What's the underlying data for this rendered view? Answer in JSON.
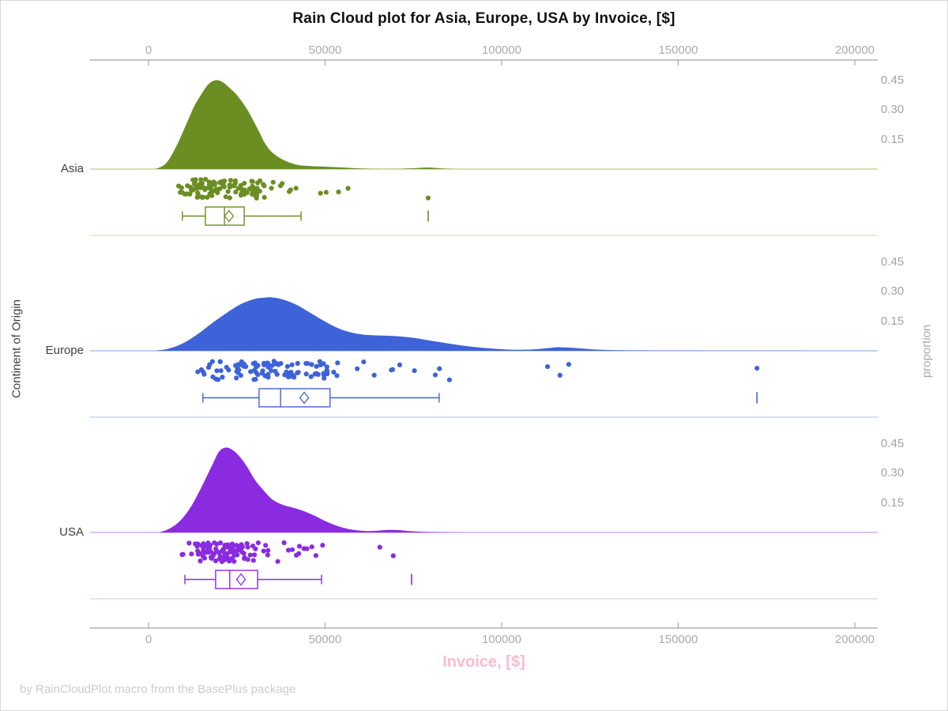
{
  "title": "Rain Cloud plot for Asia, Europe, USA by Invoice, [$]",
  "footer": "by RainCloudPlot macro from the BasePlus package",
  "chart_data": {
    "type": "raincloud",
    "title": "Rain Cloud plot for Asia, Europe, USA by Invoice, [$]",
    "xlabel": "Invoice, [$]",
    "xlabel_color": "#fbbcce",
    "ylabel_left": "Continent of Origin",
    "ylabel_right": "proportion",
    "x_ticks": [
      0,
      50000,
      100000,
      150000,
      200000
    ],
    "x_tick_labels": [
      "0",
      "50000",
      "100000",
      "150000",
      "200000"
    ],
    "x_max": 200000,
    "proportion_ticks": [
      0.45,
      0.3,
      0.15
    ],
    "proportion_tick_labels": [
      "0.45",
      "0.30",
      "0.15"
    ],
    "legend": "none",
    "grid": "off",
    "groups": [
      {
        "name": "Asia",
        "color": "#6b8e23",
        "baseline_color": "#c9d7a0",
        "separator_color": "#dfe7cd",
        "density_peak_proportion": 0.45,
        "density": [
          [
            2000,
            0
          ],
          [
            5000,
            0.03
          ],
          [
            8000,
            0.12
          ],
          [
            11000,
            0.24
          ],
          [
            13000,
            0.32
          ],
          [
            15000,
            0.38
          ],
          [
            17000,
            0.43
          ],
          [
            19000,
            0.45
          ],
          [
            21000,
            0.44
          ],
          [
            23000,
            0.41
          ],
          [
            25000,
            0.375
          ],
          [
            28000,
            0.3
          ],
          [
            31000,
            0.2
          ],
          [
            33000,
            0.13
          ],
          [
            35000,
            0.085
          ],
          [
            38000,
            0.048
          ],
          [
            42000,
            0.022
          ],
          [
            46000,
            0.015
          ],
          [
            50000,
            0.012
          ],
          [
            55000,
            0.008
          ],
          [
            59000,
            0.004
          ],
          [
            64000,
            0.001
          ],
          [
            70000,
            0.001
          ],
          [
            75000,
            0.004
          ],
          [
            79000,
            0.008
          ],
          [
            83000,
            0.003
          ],
          [
            87000,
            0
          ]
        ],
        "box": {
          "whisker_low": 9600,
          "q1": 16100,
          "median": 21500,
          "q3": 27100,
          "whisker_high": 43200,
          "mean": 22800,
          "outliers": [
            79200
          ]
        },
        "rain": {
          "n": 112,
          "median": 21000,
          "log_sigma": 0.38,
          "min": 8500,
          "max": 57000,
          "seed": 101,
          "extra_points": [
            48700,
            53800,
            56500,
            79200
          ]
        }
      },
      {
        "name": "Europe",
        "color": "#3e63d8",
        "baseline_color": "#aabdea",
        "separator_color": "#ccd8f2",
        "density_peak_proportion": 0.27,
        "density": [
          [
            2000,
            0
          ],
          [
            6000,
            0.012
          ],
          [
            10000,
            0.04
          ],
          [
            14000,
            0.085
          ],
          [
            18000,
            0.14
          ],
          [
            22000,
            0.19
          ],
          [
            26000,
            0.235
          ],
          [
            30000,
            0.262
          ],
          [
            33000,
            0.269
          ],
          [
            35000,
            0.27
          ],
          [
            38000,
            0.26
          ],
          [
            42000,
            0.232
          ],
          [
            46000,
            0.19
          ],
          [
            50000,
            0.148
          ],
          [
            54000,
            0.112
          ],
          [
            58000,
            0.09
          ],
          [
            62000,
            0.08
          ],
          [
            66000,
            0.077
          ],
          [
            70000,
            0.074
          ],
          [
            74000,
            0.068
          ],
          [
            78000,
            0.057
          ],
          [
            82000,
            0.045
          ],
          [
            86000,
            0.034
          ],
          [
            90000,
            0.024
          ],
          [
            94000,
            0.016
          ],
          [
            99000,
            0.009
          ],
          [
            104000,
            0.005
          ],
          [
            109000,
            0.007
          ],
          [
            113000,
            0.013
          ],
          [
            116000,
            0.018
          ],
          [
            120000,
            0.015
          ],
          [
            125000,
            0.008
          ],
          [
            130000,
            0.004
          ],
          [
            136000,
            0.002
          ],
          [
            145000,
            0.001
          ],
          [
            160000,
            0.0005
          ],
          [
            180000,
            0.0002
          ],
          [
            200000,
            0
          ]
        ],
        "box": {
          "whisker_low": 15400,
          "q1": 31300,
          "median": 37400,
          "q3": 51400,
          "whisker_high": 82300,
          "mean": 44100,
          "outliers": [
            172300
          ]
        },
        "rain": {
          "n": 112,
          "median": 36000,
          "log_sigma": 0.42,
          "min": 8000,
          "max": 88000,
          "seed": 202,
          "extra_points": [
            113000,
            116500,
            119000,
            172300
          ]
        }
      },
      {
        "name": "USA",
        "color": "#8a2be2",
        "baseline_color": "#d0abf2",
        "separator_color": "#e6d4f8",
        "density_peak_proportion": 0.43,
        "density": [
          [
            3000,
            0
          ],
          [
            6000,
            0.02
          ],
          [
            9000,
            0.06
          ],
          [
            12000,
            0.13
          ],
          [
            15000,
            0.23
          ],
          [
            18000,
            0.34
          ],
          [
            20000,
            0.41
          ],
          [
            22000,
            0.43
          ],
          [
            24000,
            0.415
          ],
          [
            26000,
            0.38
          ],
          [
            28000,
            0.33
          ],
          [
            30000,
            0.27
          ],
          [
            32000,
            0.225
          ],
          [
            35000,
            0.168
          ],
          [
            38000,
            0.14
          ],
          [
            41000,
            0.125
          ],
          [
            44000,
            0.108
          ],
          [
            47000,
            0.085
          ],
          [
            50000,
            0.058
          ],
          [
            53000,
            0.036
          ],
          [
            56000,
            0.02
          ],
          [
            59000,
            0.011
          ],
          [
            62000,
            0.007
          ],
          [
            65000,
            0.009
          ],
          [
            68000,
            0.013
          ],
          [
            71000,
            0.012
          ],
          [
            74000,
            0.007
          ],
          [
            78000,
            0.003
          ],
          [
            83000,
            0.001
          ],
          [
            90000,
            0
          ]
        ],
        "box": {
          "whisker_low": 10300,
          "q1": 19000,
          "median": 23000,
          "q3": 30900,
          "whisker_high": 49000,
          "mean": 26200,
          "outliers": [
            74500
          ]
        },
        "rain": {
          "n": 112,
          "median": 23000,
          "log_sigma": 0.38,
          "min": 9500,
          "max": 52000,
          "seed": 303,
          "extra_points": [
            65500,
            69300
          ]
        }
      }
    ]
  }
}
